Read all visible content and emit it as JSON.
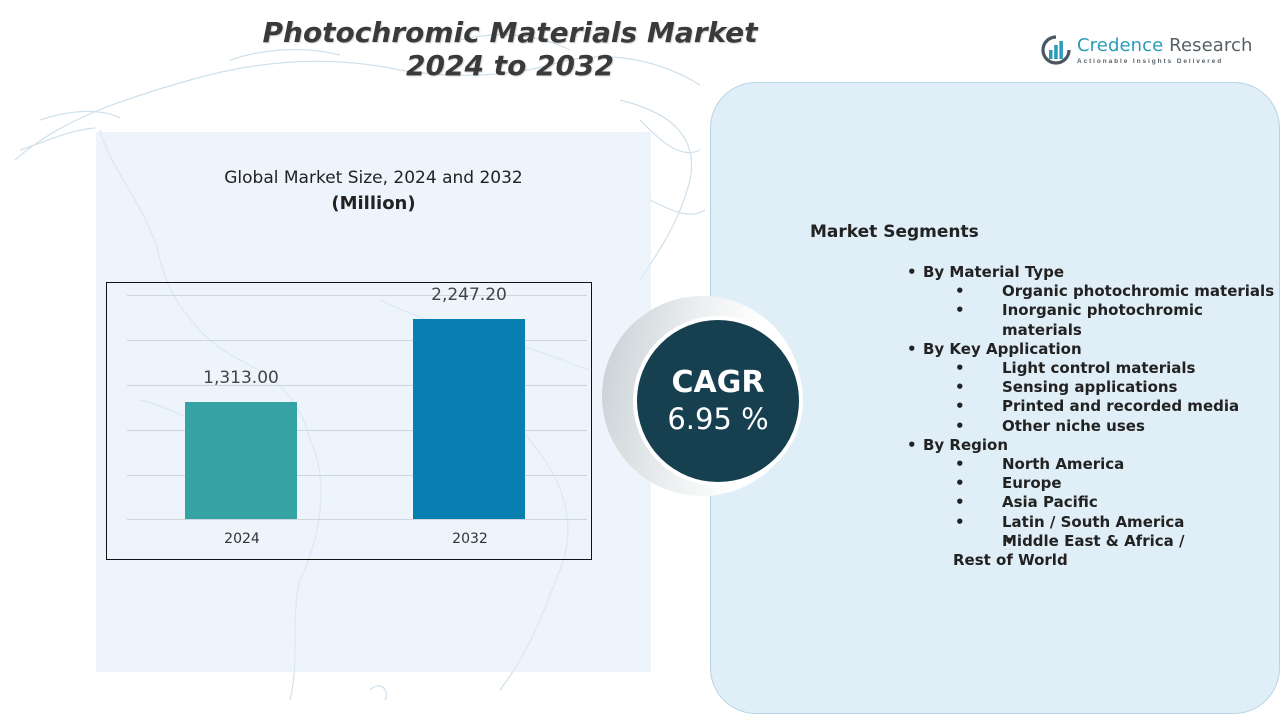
{
  "title": {
    "line1": "Photochromic Materials Market",
    "line2": "2024 to 2032"
  },
  "logo": {
    "name_part1": "Credence",
    "name_part2": " Research",
    "tagline": "Actionable Insights Delivered",
    "icon": "bar-chart-circle-icon",
    "colors": {
      "accent": "#2a9bb8",
      "gray": "#555f66"
    }
  },
  "chart_heading": {
    "line1": "Global Market Size,  2024 and 2032",
    "unit": "(Million)"
  },
  "chart_data": {
    "type": "bar",
    "title": "Global Market Size, 2024 and 2032",
    "subtitle": "(Million)",
    "categories": [
      "2024",
      "2032"
    ],
    "values": [
      1313.0,
      2247.2
    ],
    "value_labels": [
      "1,313.00",
      "2,247.20"
    ],
    "colors": [
      "#35a3a3",
      "#087fb0"
    ],
    "xlabel": "",
    "ylabel": "",
    "ylim": [
      0,
      2500
    ],
    "grid": true,
    "legend": "none"
  },
  "cagr": {
    "label": "CAGR",
    "value": "6.95 %",
    "color": "#163f50"
  },
  "segments": {
    "title": "Market Segments",
    "groups": [
      {
        "label": "By Material Type",
        "items": [
          "Organic photochromic materials",
          "Inorganic photochromic materials"
        ]
      },
      {
        "label": "By Key Application",
        "items": [
          "Light control materials",
          "Sensing applications",
          "Printed and recorded media",
          "Other niche uses"
        ]
      },
      {
        "label": "By Region",
        "items": [
          "North America",
          "Europe",
          "Asia Pacific",
          "Latin / South America",
          "Middle East & Africa / Rest of World"
        ]
      }
    ]
  },
  "colors": {
    "right_panel_bg": "#e0eef7",
    "left_panel_bg": "#e9f2f9",
    "title_text": "#3a3a3a"
  }
}
